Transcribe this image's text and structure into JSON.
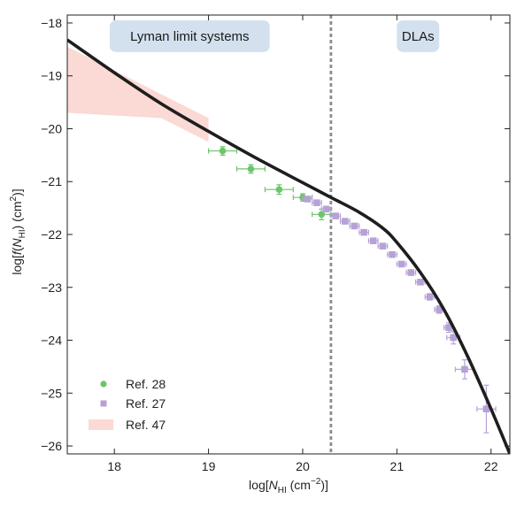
{
  "chart_data": {
    "type": "scatter",
    "xlabel_parts": [
      "log[",
      "N",
      "HI",
      " (cm",
      "−2",
      ")]"
    ],
    "ylabel_parts": [
      "log[",
      "f",
      "(",
      "N",
      "HI",
      ") (cm",
      "2",
      ")]"
    ],
    "xlim": [
      17.5,
      22.2
    ],
    "ylim": [
      -26.15,
      -17.85
    ],
    "x_ticks": [
      18,
      19,
      20,
      21,
      22
    ],
    "x_tick_labels": [
      "18",
      "19",
      "20",
      "21",
      "22"
    ],
    "y_ticks": [
      -18,
      -19,
      -20,
      -21,
      -22,
      -23,
      -24,
      -25,
      -26
    ],
    "y_tick_labels": [
      "−18",
      "−19",
      "−20",
      "−21",
      "−22",
      "−23",
      "−24",
      "−25",
      "−26"
    ],
    "regions": [
      {
        "label": "Lyman limit systems",
        "x_from": 17.95,
        "x_to": 19.65,
        "y_from": -17.95,
        "y_to": -18.55
      },
      {
        "label": "DLAs",
        "x_from": 21.0,
        "x_to": 21.45,
        "y_from": -17.95,
        "y_to": -18.55
      }
    ],
    "divider_x": 20.3,
    "series": [
      {
        "name": "Ref. 28",
        "color": "#6cc56a",
        "marker": "circle",
        "points": [
          {
            "x": 19.15,
            "y": -20.42,
            "xerr": 0.15,
            "yerr": 0.08
          },
          {
            "x": 19.45,
            "y": -20.76,
            "xerr": 0.15,
            "yerr": 0.08
          },
          {
            "x": 19.75,
            "y": -21.15,
            "xerr": 0.15,
            "yerr": 0.09
          },
          {
            "x": 20.0,
            "y": -21.3,
            "xerr": 0.1,
            "yerr": 0.07
          },
          {
            "x": 20.2,
            "y": -21.62,
            "xerr": 0.1,
            "yerr": 0.1
          }
        ]
      },
      {
        "name": "Ref. 27",
        "color": "#b6a2d6",
        "marker": "square",
        "points": [
          {
            "x": 20.05,
            "y": -21.33,
            "xerr": 0.05,
            "yerr": 0.03
          },
          {
            "x": 20.15,
            "y": -21.4,
            "xerr": 0.05,
            "yerr": 0.03
          },
          {
            "x": 20.25,
            "y": -21.52,
            "xerr": 0.05,
            "yerr": 0.03
          },
          {
            "x": 20.35,
            "y": -21.65,
            "xerr": 0.05,
            "yerr": 0.03
          },
          {
            "x": 20.45,
            "y": -21.75,
            "xerr": 0.05,
            "yerr": 0.03
          },
          {
            "x": 20.55,
            "y": -21.84,
            "xerr": 0.05,
            "yerr": 0.03
          },
          {
            "x": 20.65,
            "y": -21.96,
            "xerr": 0.05,
            "yerr": 0.03
          },
          {
            "x": 20.75,
            "y": -22.12,
            "xerr": 0.05,
            "yerr": 0.04
          },
          {
            "x": 20.85,
            "y": -22.22,
            "xerr": 0.05,
            "yerr": 0.04
          },
          {
            "x": 20.95,
            "y": -22.38,
            "xerr": 0.05,
            "yerr": 0.04
          },
          {
            "x": 21.05,
            "y": -22.56,
            "xerr": 0.05,
            "yerr": 0.04
          },
          {
            "x": 21.15,
            "y": -22.72,
            "xerr": 0.05,
            "yerr": 0.05
          },
          {
            "x": 21.25,
            "y": -22.9,
            "xerr": 0.05,
            "yerr": 0.05
          },
          {
            "x": 21.35,
            "y": -23.18,
            "xerr": 0.05,
            "yerr": 0.06
          },
          {
            "x": 21.45,
            "y": -23.42,
            "xerr": 0.05,
            "yerr": 0.07
          },
          {
            "x": 21.55,
            "y": -23.76,
            "xerr": 0.05,
            "yerr": 0.09
          },
          {
            "x": 21.6,
            "y": -23.95,
            "xerr": 0.07,
            "yerr": 0.12
          },
          {
            "x": 21.72,
            "y": -24.55,
            "xerr": 0.1,
            "yerr": 0.18
          },
          {
            "x": 21.95,
            "y": -25.3,
            "xerr": 0.1,
            "yerr": 0.45
          }
        ]
      }
    ],
    "band": {
      "name": "Ref. 47",
      "color": "#fbd9d4",
      "upper": [
        [
          17.5,
          -18.45
        ],
        [
          19.0,
          -19.8
        ]
      ],
      "lower": [
        [
          17.5,
          -19.7
        ],
        [
          18.5,
          -19.8
        ],
        [
          19.0,
          -20.25
        ]
      ]
    },
    "model_curve": {
      "color": "#1e1e1e",
      "points": [
        [
          17.5,
          -18.32
        ],
        [
          18.0,
          -18.94
        ],
        [
          18.5,
          -19.53
        ],
        [
          19.0,
          -20.05
        ],
        [
          19.5,
          -20.55
        ],
        [
          20.0,
          -21.02
        ],
        [
          20.3,
          -21.3
        ],
        [
          20.6,
          -21.58
        ],
        [
          20.85,
          -21.88
        ],
        [
          21.0,
          -22.15
        ],
        [
          21.25,
          -22.72
        ],
        [
          21.5,
          -23.42
        ],
        [
          21.75,
          -24.3
        ],
        [
          22.0,
          -25.3
        ],
        [
          22.2,
          -26.15
        ]
      ]
    }
  }
}
